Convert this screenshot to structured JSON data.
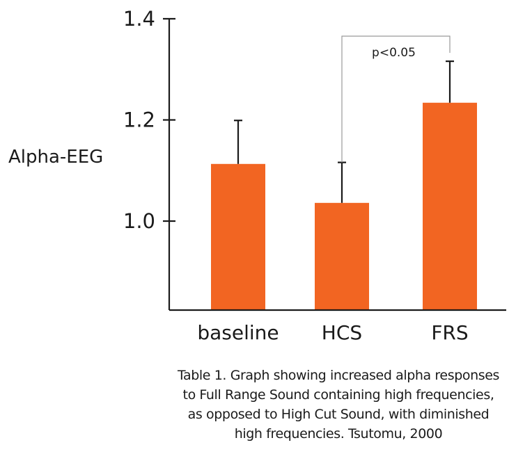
{
  "chart_data": {
    "type": "bar",
    "title": "",
    "xlabel": "",
    "ylabel": "Alpha-EEG",
    "categories": [
      "baseline",
      "HCS",
      "FRS"
    ],
    "values": [
      1.113,
      1.036,
      1.234
    ],
    "errors": [
      0.086,
      0.08,
      0.082
    ],
    "ylim": [
      0.82,
      1.4
    ],
    "yticks": [
      1.0,
      1.2,
      1.4
    ],
    "ytick_labels": [
      "1.0",
      "1.2",
      "1.4"
    ],
    "bar_color": "#f26522",
    "axis_color": "#1a1a1a",
    "bracket_color": "#999999",
    "grid": false,
    "legend": "none",
    "annotation": {
      "text": "p<0.05",
      "between": [
        "HCS",
        "FRS"
      ]
    }
  },
  "caption": {
    "lines": [
      "Table 1. Graph showing increased alpha responses",
      "to Full Range Sound containing high frequencies,",
      "as opposed to High Cut Sound, with diminished",
      "high frequencies. Tsutomu, 2000"
    ]
  }
}
